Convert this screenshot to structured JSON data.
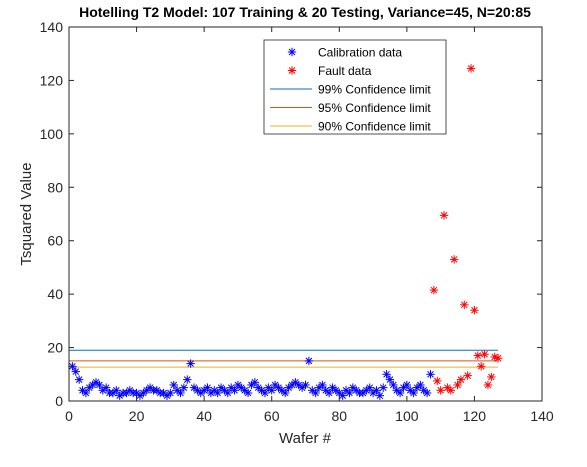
{
  "chart_data": {
    "type": "scatter",
    "title": "Hotelling T2 Model: 107 Training & 20 Testing, Variance=45, N=20:85",
    "xlabel": "Wafer #",
    "ylabel": "Tsquared Value",
    "xlim": [
      0,
      140
    ],
    "ylim": [
      0,
      140
    ],
    "xticks": [
      "0",
      "20",
      "40",
      "60",
      "80",
      "100",
      "120",
      "140"
    ],
    "yticks": [
      "0",
      "20",
      "40",
      "60",
      "80",
      "100",
      "120",
      "140"
    ],
    "grid": false,
    "legend_position": "top-right",
    "series": [
      {
        "name": "Calibration data",
        "kind": "marker",
        "marker": "asterisk",
        "color": "#0000FF",
        "x": [
          1,
          2,
          3,
          4,
          5,
          6,
          7,
          8,
          9,
          10,
          11,
          12,
          13,
          14,
          15,
          16,
          17,
          18,
          19,
          20,
          21,
          22,
          23,
          24,
          25,
          26,
          27,
          28,
          29,
          30,
          31,
          32,
          33,
          34,
          35,
          36,
          37,
          38,
          39,
          40,
          41,
          42,
          43,
          44,
          45,
          46,
          47,
          48,
          49,
          50,
          51,
          52,
          53,
          54,
          55,
          56,
          57,
          58,
          59,
          60,
          61,
          62,
          63,
          64,
          65,
          66,
          67,
          68,
          69,
          70,
          71,
          72,
          73,
          74,
          75,
          76,
          77,
          78,
          79,
          80,
          81,
          82,
          83,
          84,
          85,
          86,
          87,
          88,
          89,
          90,
          91,
          92,
          93,
          94,
          95,
          96,
          97,
          98,
          99,
          100,
          101,
          102,
          103,
          104,
          105,
          106,
          107
        ],
        "y": [
          13,
          11,
          8,
          4,
          3,
          5,
          6,
          7,
          6,
          4,
          5,
          3,
          3,
          4,
          2,
          3,
          3,
          4,
          3,
          3,
          2,
          3,
          4,
          5,
          4,
          4,
          3,
          3,
          2,
          3,
          6,
          4,
          3,
          5,
          8,
          14,
          5,
          4,
          3,
          4,
          5,
          3,
          4,
          3,
          5,
          4,
          3,
          5,
          4,
          6,
          5,
          4,
          3,
          6,
          7,
          5,
          4,
          3,
          5,
          4,
          6,
          5,
          4,
          3,
          5,
          6,
          7,
          6,
          5,
          6,
          15,
          4,
          3,
          5,
          6,
          4,
          3,
          5,
          4,
          3,
          2,
          4,
          3,
          5,
          4,
          3,
          3,
          4,
          5,
          3,
          4,
          2,
          5,
          10,
          8,
          6,
          4,
          3,
          5,
          6,
          4,
          3,
          5,
          6,
          4,
          3,
          10
        ]
      },
      {
        "name": "Fault data",
        "kind": "marker",
        "marker": "asterisk",
        "color": "#FF0000",
        "x": [
          108,
          109,
          110,
          111,
          112,
          113,
          114,
          115,
          116,
          117,
          118,
          119,
          120,
          121,
          122,
          123,
          124,
          125,
          126,
          127
        ],
        "y": [
          41.5,
          7.5,
          4,
          69.5,
          5,
          4,
          53,
          6,
          8,
          36,
          9.5,
          124.5,
          34,
          17,
          13,
          17.5,
          6,
          9,
          16.5,
          16
        ]
      },
      {
        "name": "99% Confidence limit",
        "kind": "line",
        "color": "#0072BD",
        "x": [
          0,
          127
        ],
        "y": [
          19,
          19
        ]
      },
      {
        "name": "95% Confidence limit",
        "kind": "line",
        "color": "#D95319",
        "x": [
          0,
          127
        ],
        "y": [
          15,
          15
        ]
      },
      {
        "name": "90% Confidence limit",
        "kind": "line",
        "color": "#EDB120",
        "x": [
          0,
          127
        ],
        "y": [
          12.7,
          12.7
        ]
      }
    ]
  }
}
